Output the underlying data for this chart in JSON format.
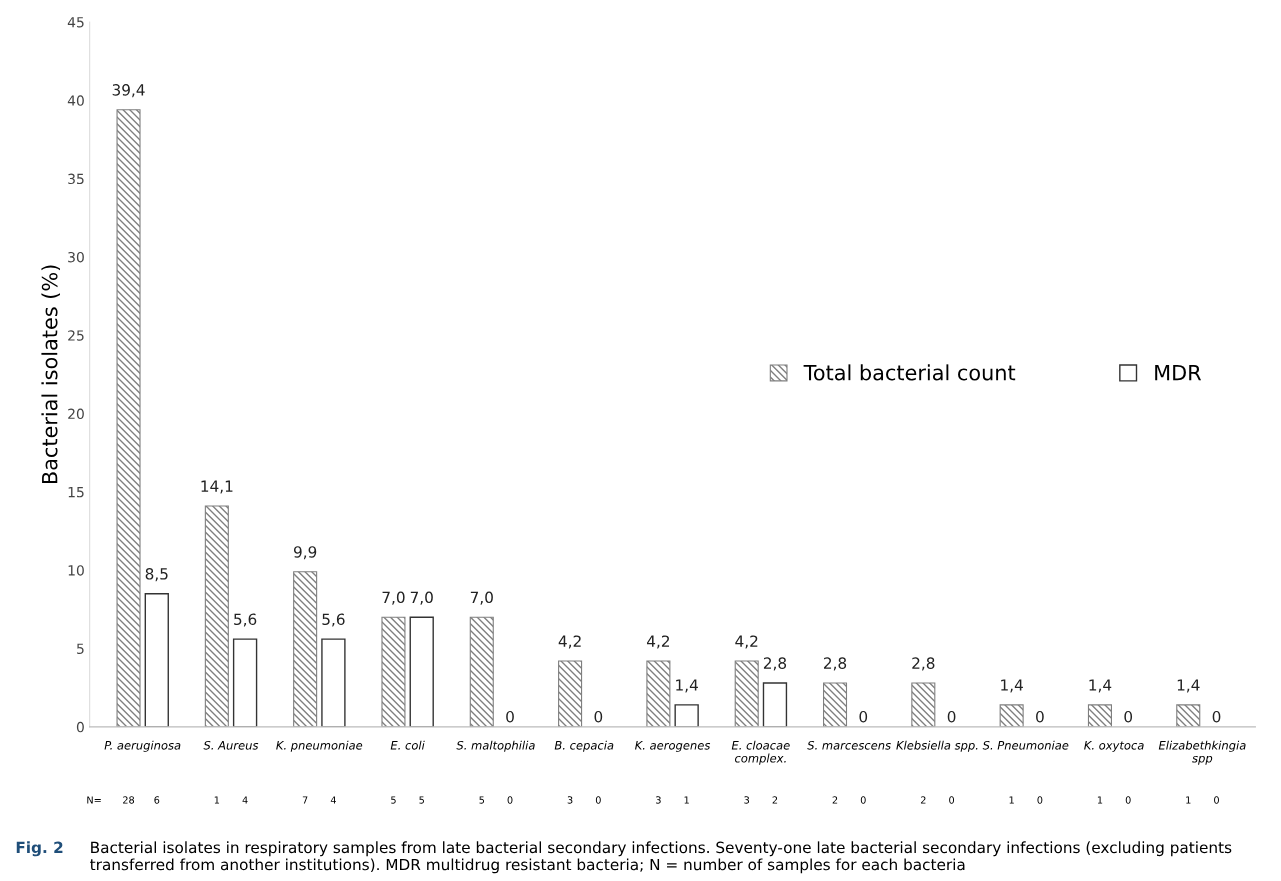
{
  "chart_data": {
    "type": "bar",
    "ylabel": "Bacterial isolates (%)",
    "categories": [
      "P. aeruginosa",
      "S. Aureus",
      "K. pneumoniae",
      "E. coli",
      "S. maltophilia",
      "B. cepacia",
      "K. aerogenes",
      "E. cloacae\ncomplex.",
      "S. marcescens",
      "Klebsiella spp.",
      "S. Pneumoniae",
      "K. oxytoca",
      "Elizabethkingia\nspp"
    ],
    "series": [
      {
        "name": "Total bacterial count",
        "color": "#7f7f7f",
        "values": [
          39.4,
          14.1,
          9.9,
          7.0,
          7.0,
          4.2,
          4.2,
          4.2,
          2.8,
          2.8,
          1.4,
          1.4,
          1.4
        ],
        "value_labels": [
          "39,4",
          "14,1",
          "9,9",
          "7,0",
          "7,0",
          "4,2",
          "4,2",
          "4,2",
          "2,8",
          "2,8",
          "1,4",
          "1,4",
          "1,4"
        ]
      },
      {
        "name": "MDR",
        "color": "#ffffff",
        "values": [
          8.5,
          5.6,
          5.6,
          7.0,
          0,
          0,
          1.4,
          2.8,
          0,
          0,
          0,
          0,
          0
        ],
        "value_labels": [
          "8,5",
          "5,6",
          "5,6",
          "7,0",
          "0",
          "0",
          "1,4",
          "2,8",
          "0",
          "0",
          "0",
          "0",
          "0"
        ]
      }
    ],
    "ylim": [
      0,
      45
    ],
    "yticks": [
      0,
      5,
      10,
      15,
      20,
      25,
      30,
      35,
      40,
      45
    ],
    "grid": false,
    "legend": "right",
    "annotations": [
      "N=",
      "28",
      "6",
      "1",
      "4",
      "7",
      "4",
      "5",
      "5",
      "5",
      "0",
      "3",
      "0",
      "3",
      "1",
      "3",
      "2",
      "2",
      "0",
      "2",
      "0",
      "1",
      "0",
      "1",
      "0",
      "1",
      "0",
      "Fig. 2",
      "Bacterial isolates in respiratory samples from late bacterial secondary infections. Seventy-one late bacterial secondary infections (excluding patients transferred from another institutions). MDR multidrug resistant bacteria; N = number of samples for each bacteria"
    ]
  }
}
